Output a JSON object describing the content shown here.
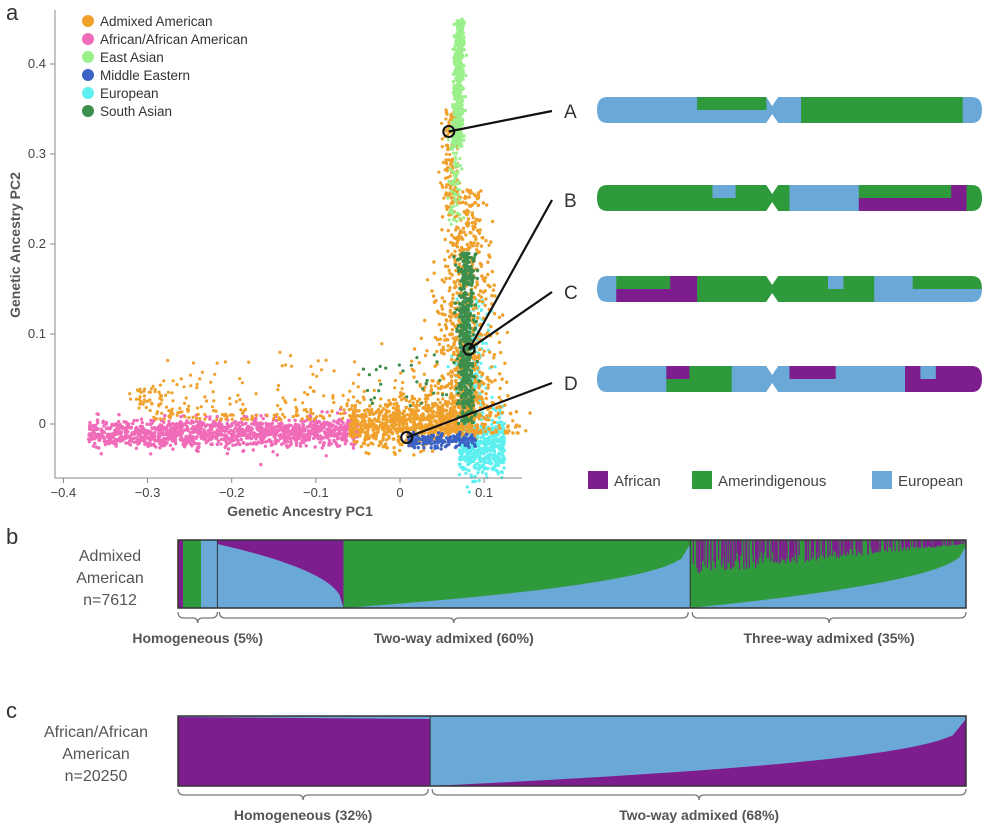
{
  "panels": {
    "a": "a",
    "b": "b",
    "c": "c"
  },
  "colors": {
    "admixed_american": "#f0a12c",
    "african": "#f06bb8",
    "east_asian": "#9cf08c",
    "middle_eastern": "#3b62c4",
    "european_pca": "#5ef0f0",
    "south_asian": "#3d8e4c",
    "anc_african": "#7e1e8e",
    "anc_amerindigenous": "#2f9a3c",
    "anc_european": "#6aa8d8"
  },
  "chart_data": [
    {
      "type": "scatter",
      "title": "",
      "xlabel": "Genetic Ancestry PC1",
      "ylabel": "Genetic Ancestry PC2",
      "xlim": [
        -0.41,
        0.145
      ],
      "ylim": [
        -0.06,
        0.46
      ],
      "xticks": [
        -0.4,
        -0.3,
        -0.2,
        -0.1,
        0.0,
        0.1
      ],
      "xtick_labels": [
        "−0.4",
        "−0.3",
        "−0.2",
        "−0.1",
        "0",
        "0.1"
      ],
      "yticks": [
        0,
        0.1,
        0.2,
        0.3,
        0.4
      ],
      "ytick_labels": [
        "0",
        "0.1",
        "0.2",
        "0.3",
        "0.4"
      ],
      "grid": false,
      "legend_position": "top-left",
      "series": [
        {
          "name": "Admixed American",
          "color": "#f0a12c"
        },
        {
          "name": "African/African American",
          "color": "#f06bb8"
        },
        {
          "name": "East Asian",
          "color": "#9cf08c"
        },
        {
          "name": "Middle Eastern",
          "color": "#3b62c4"
        },
        {
          "name": "European",
          "color": "#5ef0f0"
        },
        {
          "name": "South Asian",
          "color": "#3d8e4c"
        }
      ],
      "highlighted_points": [
        {
          "label": "A",
          "x": 0.058,
          "y": 0.325
        },
        {
          "label": "B",
          "x": 0.082,
          "y": 0.083
        },
        {
          "label": "C",
          "x": 0.082,
          "y": 0.083
        },
        {
          "label": "D",
          "x": 0.008,
          "y": -0.015
        }
      ]
    },
    {
      "type": "bar",
      "title": "",
      "description_ref": "local ancestry chromosome pairs A-D",
      "legend": [
        "African",
        "Amerindigenous",
        "European"
      ],
      "chromosomes": [
        {
          "label": "A",
          "segments": [
            {
              "start": 0.0,
              "end": 0.26,
              "anc": "European"
            },
            {
              "start": 0.26,
              "end": 0.44,
              "anc": "Amerindigenous"
            },
            {
              "start": 0.44,
              "end": 0.53,
              "anc": "European"
            },
            {
              "start": 0.53,
              "end": 0.95,
              "anc": "Amerindigenous"
            },
            {
              "start": 0.95,
              "end": 1.0,
              "anc": "European"
            }
          ]
        },
        {
          "label": "B",
          "segments": [
            {
              "start": 0.0,
              "end": 0.3,
              "anc": "Amerindigenous"
            },
            {
              "start": 0.3,
              "end": 0.36,
              "anc": "European"
            },
            {
              "start": 0.36,
              "end": 0.5,
              "anc": "Amerindigenous"
            },
            {
              "start": 0.5,
              "end": 0.68,
              "anc": "European"
            },
            {
              "start": 0.68,
              "end": 0.92,
              "anc": "Amerindigenous"
            },
            {
              "start": 0.92,
              "end": 0.96,
              "anc": "African"
            },
            {
              "start": 0.96,
              "end": 1.0,
              "anc": "Amerindigenous"
            }
          ]
        },
        {
          "label": "C",
          "segments": [
            {
              "start": 0.0,
              "end": 0.05,
              "anc": "European"
            },
            {
              "start": 0.05,
              "end": 0.19,
              "anc": "Amerindigenous"
            },
            {
              "start": 0.19,
              "end": 0.26,
              "anc": "African"
            },
            {
              "start": 0.26,
              "end": 0.6,
              "anc": "Amerindigenous"
            },
            {
              "start": 0.6,
              "end": 0.64,
              "anc": "European"
            },
            {
              "start": 0.64,
              "end": 0.72,
              "anc": "Amerindigenous"
            },
            {
              "start": 0.72,
              "end": 0.82,
              "anc": "European"
            },
            {
              "start": 0.82,
              "end": 1.0,
              "anc": "Amerindigenous"
            }
          ]
        },
        {
          "label": "D",
          "segments": [
            {
              "start": 0.0,
              "end": 0.18,
              "anc": "European"
            },
            {
              "start": 0.18,
              "end": 0.24,
              "anc": "African"
            },
            {
              "start": 0.24,
              "end": 0.35,
              "anc": "Amerindigenous"
            },
            {
              "start": 0.35,
              "end": 0.5,
              "anc": "European"
            },
            {
              "start": 0.5,
              "end": 0.62,
              "anc": "African"
            },
            {
              "start": 0.62,
              "end": 0.8,
              "anc": "European"
            },
            {
              "start": 0.8,
              "end": 0.84,
              "anc": "African"
            },
            {
              "start": 0.84,
              "end": 0.88,
              "anc": "European"
            },
            {
              "start": 0.88,
              "end": 1.0,
              "anc": "African"
            }
          ]
        }
      ]
    },
    {
      "type": "area",
      "title": "",
      "group_label": [
        "Admixed",
        "American",
        "n=7612"
      ],
      "n": 7612,
      "groups": [
        {
          "label": "Homogeneous (5%)",
          "fraction": 0.05
        },
        {
          "label": "Two-way admixed (60%)",
          "fraction": 0.6
        },
        {
          "label": "Three-way admixed (35%)",
          "fraction": 0.35
        }
      ]
    },
    {
      "type": "area",
      "title": "",
      "group_label": [
        "African/African",
        "American",
        "n=20250"
      ],
      "n": 20250,
      "groups": [
        {
          "label": "Homogeneous (32%)",
          "fraction": 0.32
        },
        {
          "label": "Two-way admixed (68%)",
          "fraction": 0.68
        }
      ]
    }
  ]
}
